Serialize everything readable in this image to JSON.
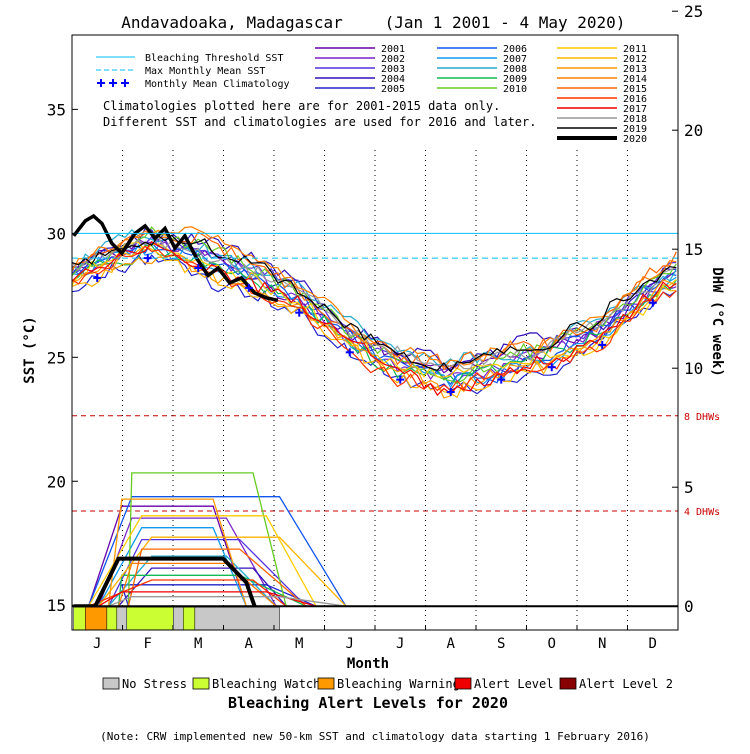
{
  "chart_data": {
    "type": "line",
    "title": "Andavadoaka, Madagascar",
    "date_range": "(Jan 1 2001 - 4 May 2020)",
    "xlabel": "Month",
    "ylabel_left": "SST (°C)",
    "ylabel_right": "DHW (°C week)",
    "x_categories": [
      "J",
      "F",
      "M",
      "A",
      "M",
      "J",
      "J",
      "A",
      "S",
      "O",
      "N",
      "D"
    ],
    "ylim_left": [
      14,
      38
    ],
    "yticks_left": [
      "15",
      "20",
      "25",
      "30",
      "35"
    ],
    "ylim_right": [
      -1,
      24
    ],
    "yticks_right": [
      "0",
      "5",
      "10",
      "15",
      "20",
      "25"
    ],
    "grid": "vertical dotted month lines",
    "bleaching_threshold_sst": 30.0,
    "max_monthly_mean_sst": 29.0,
    "dhw_reference_lines": [
      {
        "label": "8 DHWs",
        "dhw": 8,
        "color": "#cc0000"
      },
      {
        "label": "4 DHWs",
        "dhw": 4,
        "color": "#cc0000"
      }
    ],
    "monthly_mean_climatology": [
      {
        "month": 1,
        "sst": 28.2
      },
      {
        "month": 2,
        "sst": 29.0
      },
      {
        "month": 3,
        "sst": 28.6
      },
      {
        "month": 4,
        "sst": 27.8
      },
      {
        "month": 5,
        "sst": 26.8
      },
      {
        "month": 6,
        "sst": 25.2
      },
      {
        "month": 7,
        "sst": 24.1
      },
      {
        "month": 8,
        "sst": 23.6
      },
      {
        "month": 9,
        "sst": 24.1
      },
      {
        "month": 10,
        "sst": 24.6
      },
      {
        "month": 11,
        "sst": 25.5
      },
      {
        "month": 12,
        "sst": 27.2
      }
    ],
    "legend_lines": [
      {
        "label": "Bleaching Threshold SST",
        "color": "#00bfff",
        "style": "solid"
      },
      {
        "label": "Max Monthly Mean SST",
        "color": "#00bfff",
        "style": "dashed"
      },
      {
        "label": "Monthly Mean Climatology",
        "color": "#0000ff",
        "style": "plus"
      }
    ],
    "note_lines": [
      "Climatologies plotted here are for 2001-2015 data only.",
      "Different SST and climatologies are used for 2016 and later."
    ],
    "series": [
      {
        "name": "2001",
        "color": "#6600aa",
        "dhw_peak": 4.2
      },
      {
        "name": "2002",
        "color": "#7a22cc",
        "dhw_peak": 3.7
      },
      {
        "name": "2003",
        "color": "#5533dd",
        "dhw_peak": 2.8
      },
      {
        "name": "2004",
        "color": "#3311bb",
        "dhw_peak": 1.6
      },
      {
        "name": "2005",
        "color": "#2222cc",
        "dhw_peak": 0.9
      },
      {
        "name": "2006",
        "color": "#1155ee",
        "dhw_peak": 4.6
      },
      {
        "name": "2007",
        "color": "#1199ee",
        "dhw_peak": 3.3
      },
      {
        "name": "2008",
        "color": "#22aacc",
        "dhw_peak": 2.1
      },
      {
        "name": "2009",
        "color": "#11bb55",
        "dhw_peak": 1.3
      },
      {
        "name": "2010",
        "color": "#66cc22",
        "dhw_peak": 5.6
      },
      {
        "name": "2011",
        "color": "#ffcc00",
        "dhw_peak": 3.8
      },
      {
        "name": "2012",
        "color": "#ffb300",
        "dhw_peak": 2.9
      },
      {
        "name": "2013",
        "color": "#ff9900",
        "dhw_peak": 4.5
      },
      {
        "name": "2014",
        "color": "#ff7f00",
        "dhw_peak": 1.8
      },
      {
        "name": "2015",
        "color": "#ff6600",
        "dhw_peak": 2.4
      },
      {
        "name": "2016",
        "color": "#ff3300",
        "dhw_peak": 1.1
      },
      {
        "name": "2017",
        "color": "#ee0000",
        "dhw_peak": 0.6
      },
      {
        "name": "2018",
        "color": "#999999",
        "dhw_peak": 0.4
      },
      {
        "name": "2019",
        "color": "#000000",
        "dhw_peak": 0.0
      },
      {
        "name": "2020",
        "color": "#000000",
        "dhw_peak": 2.0,
        "bold": true
      }
    ],
    "sst_2020": [
      {
        "day": 1,
        "sst": 29.9
      },
      {
        "day": 8,
        "sst": 30.5
      },
      {
        "day": 13,
        "sst": 30.7
      },
      {
        "day": 18,
        "sst": 30.4
      },
      {
        "day": 24,
        "sst": 29.6
      },
      {
        "day": 30,
        "sst": 29.2
      },
      {
        "day": 38,
        "sst": 30.0
      },
      {
        "day": 44,
        "sst": 30.3
      },
      {
        "day": 50,
        "sst": 29.8
      },
      {
        "day": 56,
        "sst": 30.2
      },
      {
        "day": 62,
        "sst": 29.4
      },
      {
        "day": 68,
        "sst": 29.9
      },
      {
        "day": 75,
        "sst": 29.0
      },
      {
        "day": 82,
        "sst": 28.3
      },
      {
        "day": 88,
        "sst": 28.6
      },
      {
        "day": 95,
        "sst": 28.0
      },
      {
        "day": 102,
        "sst": 28.2
      },
      {
        "day": 110,
        "sst": 27.6
      },
      {
        "day": 117,
        "sst": 27.4
      },
      {
        "day": 124,
        "sst": 27.3
      }
    ],
    "dhw_2020": [
      {
        "day": 1,
        "dhw": 0.0
      },
      {
        "day": 14,
        "dhw": 0.0
      },
      {
        "day": 21,
        "dhw": 1.0
      },
      {
        "day": 28,
        "dhw": 2.0
      },
      {
        "day": 60,
        "dhw": 2.0
      },
      {
        "day": 91,
        "dhw": 2.0
      },
      {
        "day": 105,
        "dhw": 1.0
      },
      {
        "day": 110,
        "dhw": 0.0
      }
    ],
    "alert_bar_2020": [
      {
        "start_day": 1,
        "end_day": 8,
        "level": "Bleaching Watch"
      },
      {
        "start_day": 8,
        "end_day": 21,
        "level": "Bleaching Warning"
      },
      {
        "start_day": 21,
        "end_day": 27,
        "level": "Bleaching Watch"
      },
      {
        "start_day": 27,
        "end_day": 33,
        "level": "No Stress"
      },
      {
        "start_day": 33,
        "end_day": 61,
        "level": "Bleaching Watch"
      },
      {
        "start_day": 61,
        "end_day": 67,
        "level": "No Stress"
      },
      {
        "start_day": 67,
        "end_day": 74,
        "level": "Bleaching Watch"
      },
      {
        "start_day": 74,
        "end_day": 125,
        "level": "No Stress"
      }
    ],
    "alert_levels_title": "Bleaching Alert Levels for 2020",
    "alert_levels": [
      {
        "label": "No Stress",
        "color": "#c8c8c8"
      },
      {
        "label": "Bleaching Watch",
        "color": "#ccff33"
      },
      {
        "label": "Bleaching Warning",
        "color": "#ff9900"
      },
      {
        "label": "Alert Level 1",
        "color": "#ee0000"
      },
      {
        "label": "Alert Level 2",
        "color": "#880000"
      }
    ],
    "footnote": "(Note: CRW implemented new 50-km SST and climatology data starting 1 February 2016)"
  }
}
